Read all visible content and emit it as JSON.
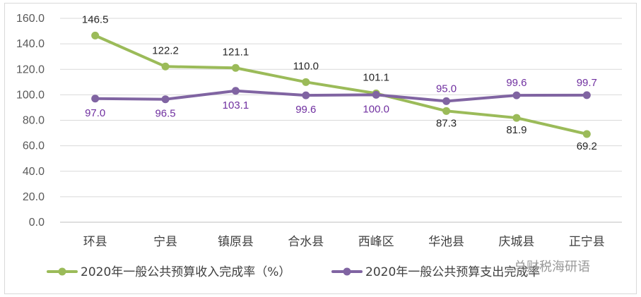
{
  "chart_data": {
    "type": "line",
    "categories": [
      "环县",
      "宁县",
      "镇原县",
      "合水县",
      "西峰区",
      "华池县",
      "庆城县",
      "正宁县"
    ],
    "series": [
      {
        "name": "2020年一般公共预算收入完成率（%）",
        "values": [
          146.5,
          122.2,
          121.1,
          110.0,
          101.1,
          87.3,
          81.9,
          69.2
        ],
        "color": "#9bbb59",
        "label_color": "#262626"
      },
      {
        "name": "2020年一般公共预算支出完成率",
        "values": [
          97.0,
          96.5,
          103.1,
          99.6,
          100.0,
          95.0,
          99.6,
          99.7
        ],
        "color": "#8064a2",
        "label_color": "#7030a0"
      }
    ],
    "ylim": [
      0,
      160
    ],
    "yticks": [
      "0.0",
      "20.0",
      "40.0",
      "60.0",
      "80.0",
      "100.0",
      "120.0",
      "140.0",
      "160.0"
    ],
    "grid": true,
    "legend": "bottom",
    "title": "",
    "xlabel": "",
    "ylabel": ""
  },
  "watermark": "总财税海研语"
}
